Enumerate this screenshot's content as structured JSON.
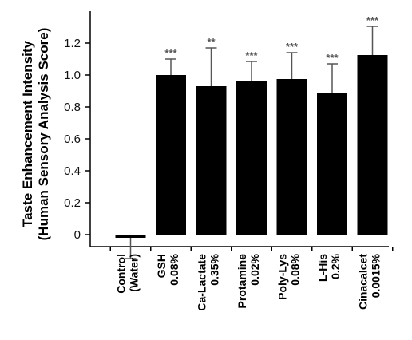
{
  "chart_data": {
    "type": "bar",
    "ylabel_lines": [
      "Taste Enhancement Intensity",
      "(Human Sensory Analysis Score)"
    ],
    "ylim": [
      -0.2,
      1.4
    ],
    "yticks": [
      0,
      0.2,
      0.4,
      0.6,
      0.8,
      1.0,
      1.2
    ],
    "ytick_labels": [
      "0",
      "0.2",
      "0.4",
      "0.6",
      "0.8",
      "1.0",
      "1.2"
    ],
    "categories": [
      {
        "lines": [
          "Control",
          "(Water)"
        ]
      },
      {
        "lines": [
          "GSH",
          "0.08%"
        ]
      },
      {
        "lines": [
          "Ca-Lactate",
          "0.35%"
        ]
      },
      {
        "lines": [
          "Protamine",
          "0.02%"
        ]
      },
      {
        "lines": [
          "Poly-Lys",
          "0.08%"
        ]
      },
      {
        "lines": [
          "L-His",
          "0.2%"
        ]
      },
      {
        "lines": [
          "Cinacalcet",
          "0.0015%"
        ]
      }
    ],
    "values": [
      -0.02,
      1.0,
      0.93,
      0.965,
      0.975,
      0.885,
      1.125
    ],
    "errors": [
      0.13,
      0.1,
      0.24,
      0.12,
      0.165,
      0.185,
      0.18
    ],
    "significance": [
      "",
      "***",
      "**",
      "***",
      "***",
      "***",
      "***"
    ],
    "bar_color": "#000000",
    "grid": false,
    "legend": "none"
  }
}
